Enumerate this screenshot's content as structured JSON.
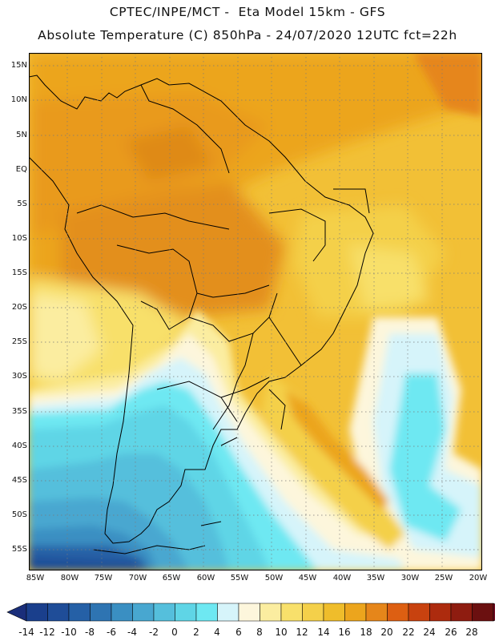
{
  "header": {
    "title": "CPTEC/INPE/MCT -  Eta Model 15km - GFS",
    "subtitle": "Absolute Temperature (C) 850hPa - 24/07/2020 12UTC fct=22h"
  },
  "map": {
    "latitude_labels": [
      "15N",
      "10N",
      "5N",
      "EQ",
      "5S",
      "10S",
      "15S",
      "20S",
      "25S",
      "30S",
      "35S",
      "40S",
      "45S",
      "50S",
      "55S"
    ],
    "longitude_labels": [
      "85W",
      "80W",
      "75W",
      "70W",
      "65W",
      "60W",
      "55W",
      "50W",
      "45W",
      "40W",
      "35W",
      "30W",
      "25W",
      "20W"
    ],
    "grid": "dotted"
  },
  "colorbar": {
    "labels": [
      "-14",
      "-12",
      "-10",
      "-8",
      "-6",
      "-4",
      "-2",
      "0",
      "2",
      "4",
      "6",
      "8",
      "10",
      "12",
      "14",
      "16",
      "18",
      "20",
      "22",
      "24",
      "26",
      "28"
    ],
    "colors": [
      "#1a3f8c",
      "#1f4d98",
      "#2560a6",
      "#2e74b2",
      "#3a8fc2",
      "#48a7d0",
      "#55bfdc",
      "#5fd5e6",
      "#6ee8f2",
      "#d6f4fa",
      "#fdf6dc",
      "#fbeda0",
      "#f8e06b",
      "#f4d04a",
      "#efbd2b",
      "#eca51d",
      "#e6861a",
      "#dd5f12",
      "#c8420f",
      "#ad2b0e",
      "#8e1c10",
      "#6b1010"
    ],
    "unit": "C"
  }
}
